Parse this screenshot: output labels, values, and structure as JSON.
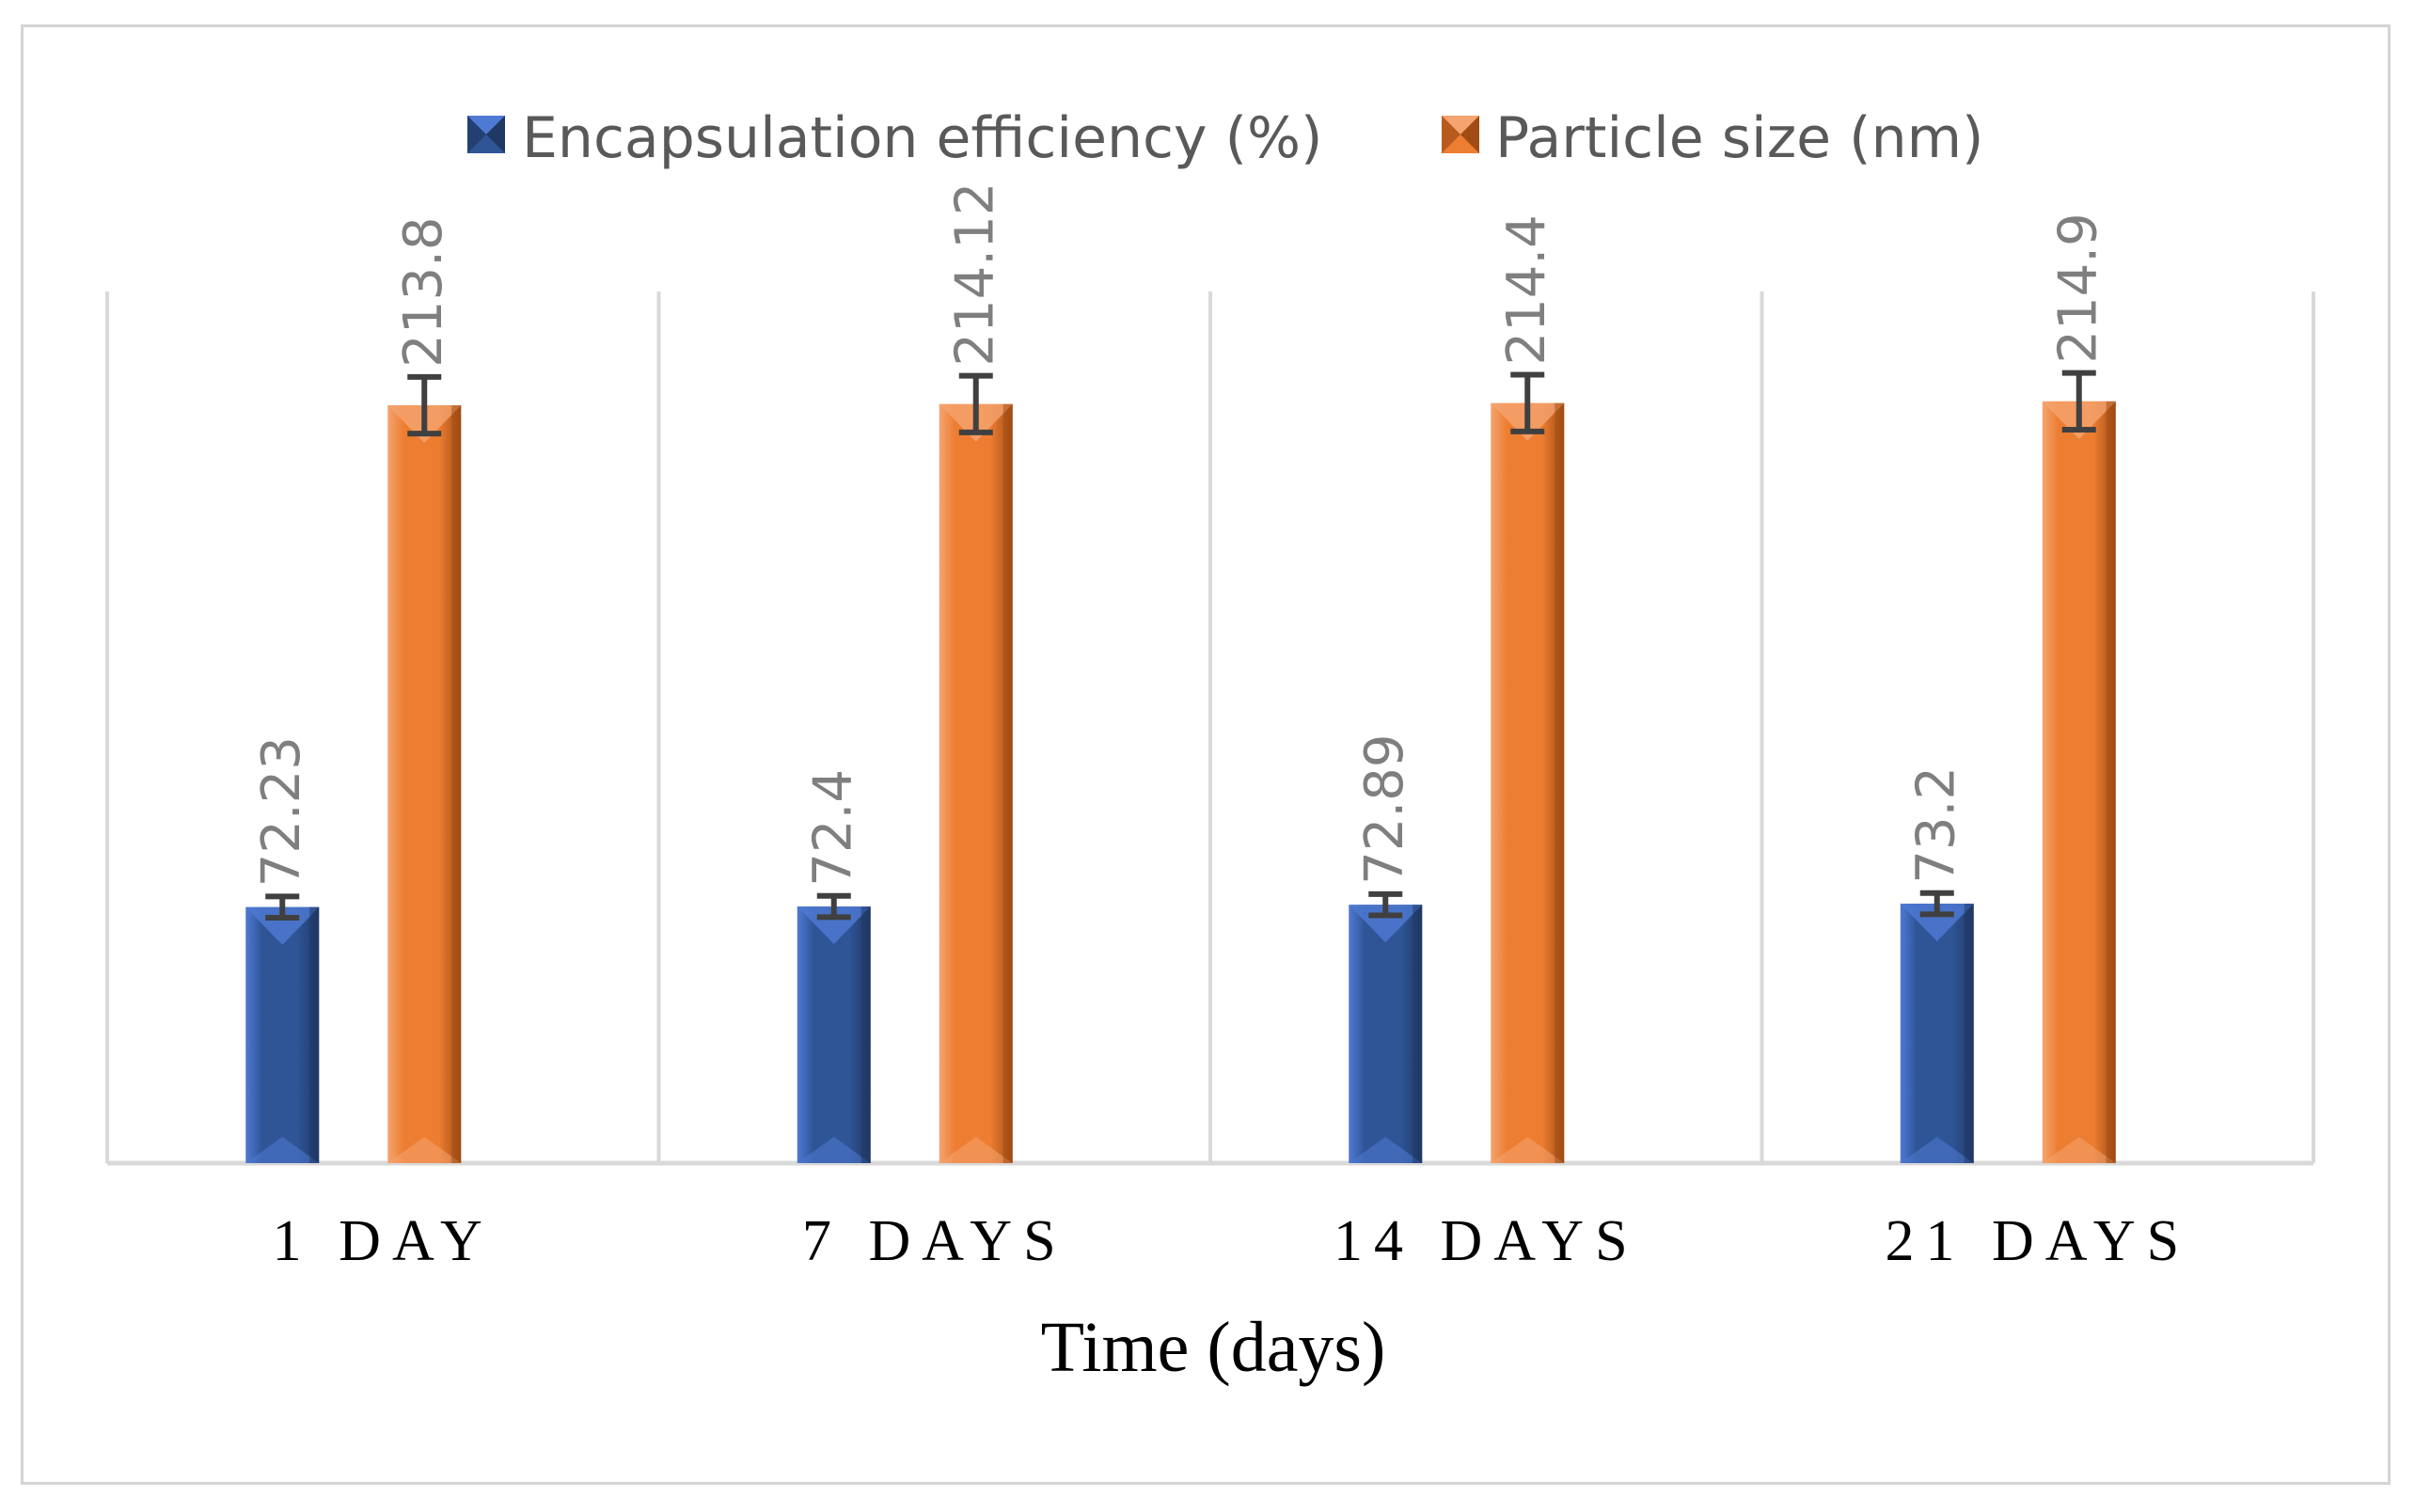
{
  "chart_data": {
    "type": "bar",
    "title": "",
    "xlabel": "Time (days)",
    "ylabel": "",
    "categories": [
      "1 DAY",
      "7 DAYS",
      "14 DAYS",
      "21 DAYS"
    ],
    "series": [
      {
        "name": "Encapsulation efficiency (%)",
        "values": [
          72.23,
          72.4,
          72.89,
          73.2
        ],
        "labels": [
          "72.23",
          "72.4",
          "72.89",
          "73.2"
        ],
        "error": [
          3,
          3,
          3,
          3
        ],
        "color": "#2f5597",
        "color_dark": "#1f3864",
        "color_light": "#4f7ad4"
      },
      {
        "name": "Particle size (nm)",
        "values": [
          213.8,
          214.12,
          214.4,
          214.9
        ],
        "labels": [
          "213.8",
          "214.12",
          "214.4",
          "214.9"
        ],
        "error": [
          8,
          8,
          8,
          8
        ],
        "color": "#ed7d31",
        "color_dark": "#a04c14",
        "color_light": "#f4a470"
      }
    ],
    "ylim": [
      0,
      250
    ],
    "grid": false,
    "legend_position": "top-center",
    "colors": {
      "gridline": "#d9d9d9",
      "errorbar": "#404040"
    }
  }
}
